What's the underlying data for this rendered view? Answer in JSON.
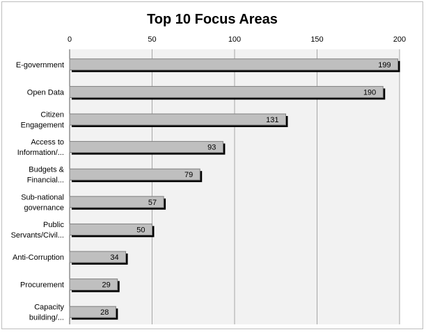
{
  "chart_data": {
    "type": "bar",
    "orientation": "horizontal",
    "title": "Top 10 Focus Areas",
    "xlim": [
      0,
      200
    ],
    "x_ticks": [
      0,
      50,
      100,
      150,
      200
    ],
    "x_axis_position": "top",
    "grid": true,
    "legend": "none",
    "categories": [
      [
        "E-government"
      ],
      [
        "Open Data"
      ],
      [
        "Citizen",
        "Engagement"
      ],
      [
        "Access to",
        "Information/..."
      ],
      [
        "Budgets &",
        "Financial..."
      ],
      [
        "Sub-national",
        "governance"
      ],
      [
        "Public",
        "Servants/Civil..."
      ],
      [
        "Anti-Corruption"
      ],
      [
        "Procurement"
      ],
      [
        "Capacity",
        "building/..."
      ]
    ],
    "values": [
      199,
      190,
      131,
      93,
      79,
      57,
      50,
      34,
      29,
      28
    ],
    "colors": {
      "bar_fill": "#bfbfbf",
      "bar_stroke": "#7f7f7f",
      "bar_shadow": "#000000",
      "plot_background": "#f2f2f2",
      "gridline": "#a6a6a6",
      "axis": "#595959"
    }
  }
}
